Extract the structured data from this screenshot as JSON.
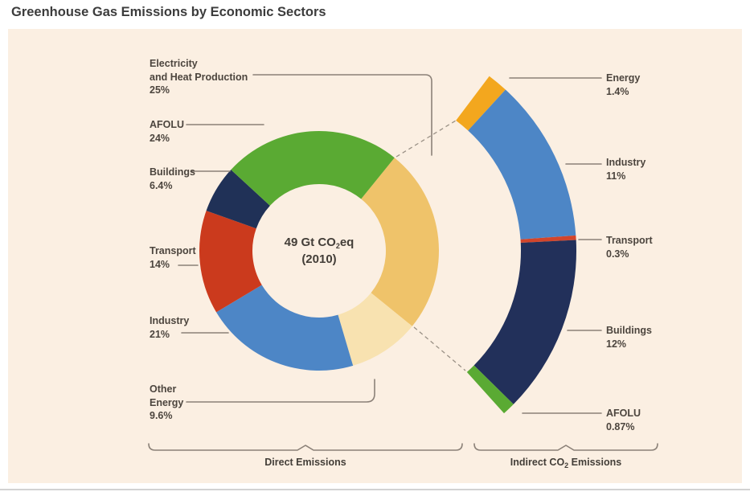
{
  "title": "Greenhouse Gas Emissions by Economic Sectors",
  "colors": {
    "panel_bg": "#fbefe2",
    "electricity": "#efc36a",
    "other_energy": "#f8e2b0",
    "industry": "#4d86c6",
    "transport": "#cb3a1d",
    "transport_indirect": "#d2452b",
    "buildings": "#203157",
    "energy_indirect": "#f3a71e",
    "afolu": "#5aaa33",
    "leader_line": "#8b8178",
    "text": "#4c453e"
  },
  "chart_data": [
    {
      "type": "pie",
      "subtype": "donut",
      "group_label": "Direct Emissions",
      "center": {
        "prefix": "49 Gt CO",
        "sub": "2",
        "suffix": "eq",
        "line2": "(2010)"
      },
      "start_angle_deg": 39,
      "segments": [
        {
          "key": "electricity",
          "label_lines": [
            "Electricity",
            "and Heat Production"
          ],
          "pct_label": "25%",
          "value": 25,
          "color": "#efc36a"
        },
        {
          "key": "other-energy",
          "label_lines": [
            "Other",
            "Energy"
          ],
          "pct_label": "9.6%",
          "value": 9.6,
          "color": "#f8e2b0"
        },
        {
          "key": "industry",
          "label_lines": [
            "Industry"
          ],
          "pct_label": "21%",
          "value": 21,
          "color": "#4d86c6"
        },
        {
          "key": "transport",
          "label_lines": [
            "Transport"
          ],
          "pct_label": "14%",
          "value": 14,
          "color": "#cb3a1d"
        },
        {
          "key": "buildings",
          "label_lines": [
            "Buildings"
          ],
          "pct_label": "6.4%",
          "value": 6.4,
          "color": "#203157"
        },
        {
          "key": "afolu",
          "label_lines": [
            "AFOLU"
          ],
          "pct_label": "24%",
          "value": 24,
          "color": "#5aaa33"
        }
      ]
    },
    {
      "type": "pie",
      "subtype": "arc",
      "group_label_parts": {
        "prefix": "Indirect CO",
        "sub": "2",
        "suffix": " Emissions"
      },
      "start_angle_deg": 37,
      "end_angle_deg": 138,
      "segments": [
        {
          "key": "energy",
          "label_lines": [
            "Energy"
          ],
          "pct_label": "1.4%",
          "value": 1.4,
          "color": "#f3a71e"
        },
        {
          "key": "industry",
          "label_lines": [
            "Industry"
          ],
          "pct_label": "11%",
          "value": 11,
          "color": "#4d86c6"
        },
        {
          "key": "transport",
          "label_lines": [
            "Transport"
          ],
          "pct_label": "0.3%",
          "value": 0.3,
          "color": "#d2452b"
        },
        {
          "key": "buildings",
          "label_lines": [
            "Buildings"
          ],
          "pct_label": "12%",
          "value": 12,
          "color": "#22305a"
        },
        {
          "key": "afolu",
          "label_lines": [
            "AFOLU"
          ],
          "pct_label": "0.87%",
          "value": 0.87,
          "color": "#5aaa33"
        }
      ]
    }
  ]
}
